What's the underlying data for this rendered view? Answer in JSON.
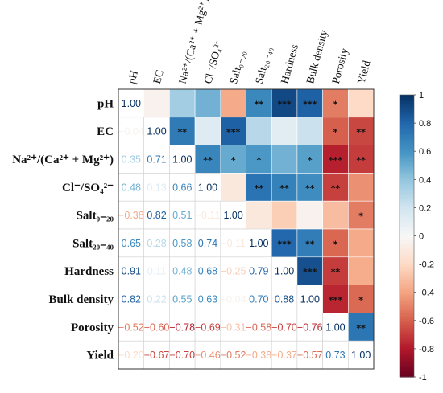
{
  "chart_data": {
    "type": "heatmap",
    "variables": [
      {
        "row": "pH",
        "col": "pH"
      },
      {
        "row": "EC",
        "col": "EC"
      },
      {
        "row": "Na²⁺/(Ca²⁺ + Mg²⁺)",
        "col": "Na²⁺/(Ca²⁺ + Mg²⁺)"
      },
      {
        "row": "Cl⁻/SO₄²⁻",
        "col": "Cl⁻/SO₄²⁻"
      },
      {
        "row": "Salt₀₋₂₀",
        "col": "Salt₀₋₂₀"
      },
      {
        "row": "Salt₂₀₋₄₀",
        "col": "Salt₂₀₋₄₀"
      },
      {
        "row": "Hardness",
        "col": "Hardness"
      },
      {
        "row": "Bulk density",
        "col": "Bulk density"
      },
      {
        "row": "Porosity",
        "col": "Porosity"
      },
      {
        "row": "Yield",
        "col": "Yield"
      }
    ],
    "lower_labels": [
      [
        "1.00"
      ],
      [
        "−0.04",
        "1.00"
      ],
      [
        "0.35",
        "0.71",
        "1.00"
      ],
      [
        "0.48",
        "0.13",
        "0.66",
        "1.00"
      ],
      [
        "−0.38",
        "0.82",
        "0.51",
        "−0.11",
        "1.00"
      ],
      [
        "0.65",
        "0.28",
        "0.58",
        "0.74",
        "−0.11",
        "1.00"
      ],
      [
        "0.91",
        "0.11",
        "0.48",
        "0.68",
        "−0.25",
        "0.79",
        "1.00"
      ],
      [
        "0.82",
        "0.22",
        "0.55",
        "0.63",
        "−0.04",
        "0.70",
        "0.88",
        "1.00"
      ],
      [
        "−0.52",
        "−0.60",
        "−0.78",
        "−0.69",
        "−0.31",
        "−0.58",
        "−0.70",
        "−0.76",
        "1.00"
      ],
      [
        "−0.20",
        "−0.67",
        "−0.70",
        "−0.46",
        "−0.52",
        "−0.38",
        "−0.37",
        "−0.57",
        "0.73",
        "1.00"
      ]
    ],
    "lower_values": [
      [
        1.0
      ],
      [
        -0.04,
        1.0
      ],
      [
        0.35,
        0.71,
        1.0
      ],
      [
        0.48,
        0.13,
        0.66,
        1.0
      ],
      [
        -0.38,
        0.82,
        0.51,
        -0.11,
        1.0
      ],
      [
        0.65,
        0.28,
        0.58,
        0.74,
        -0.11,
        1.0
      ],
      [
        0.91,
        0.11,
        0.48,
        0.68,
        -0.25,
        0.79,
        1.0
      ],
      [
        0.82,
        0.22,
        0.55,
        0.63,
        -0.04,
        0.7,
        0.88,
        1.0
      ],
      [
        -0.52,
        -0.6,
        -0.78,
        -0.69,
        -0.31,
        -0.58,
        -0.7,
        -0.76,
        1.0
      ],
      [
        -0.2,
        -0.67,
        -0.7,
        -0.46,
        -0.52,
        -0.38,
        -0.37,
        -0.57,
        0.73,
        1.0
      ]
    ],
    "upper_stars": [
      [
        "",
        "",
        "",
        "",
        "",
        "**",
        "***",
        "***",
        "*",
        ""
      ],
      [
        "",
        "",
        "**",
        "",
        "***",
        "",
        "",
        "",
        "*",
        "**"
      ],
      [
        "",
        "",
        "",
        "**",
        "*",
        "*",
        "",
        "*",
        "***",
        "**"
      ],
      [
        "",
        "",
        "",
        "",
        "",
        "**",
        "**",
        "**",
        "**",
        ""
      ],
      [
        "",
        "",
        "",
        "",
        "",
        "",
        "",
        "",
        "",
        "*"
      ],
      [
        "",
        "",
        "",
        "",
        "",
        "",
        "***",
        "**",
        "*",
        ""
      ],
      [
        "",
        "",
        "",
        "",
        "",
        "",
        "",
        "***",
        "**",
        ""
      ],
      [
        "",
        "",
        "",
        "",
        "",
        "",
        "",
        "",
        "***",
        "*"
      ],
      [
        "",
        "",
        "",
        "",
        "",
        "",
        "",
        "",
        "",
        "**"
      ],
      [
        "",
        "",
        "",
        "",
        "",
        "",
        "",
        "",
        "",
        ""
      ]
    ],
    "colorbar": {
      "range": [
        -1,
        1
      ],
      "ticks": [
        "1",
        "0.8",
        "0.6",
        "0.4",
        "0.2",
        "0",
        "-0.2",
        "-0.4",
        "-0.6",
        "-0.8",
        "-1"
      ],
      "colors": {
        "neg": "#67001f",
        "mid": "#f7f7f7",
        "pos": "#053061"
      }
    }
  }
}
